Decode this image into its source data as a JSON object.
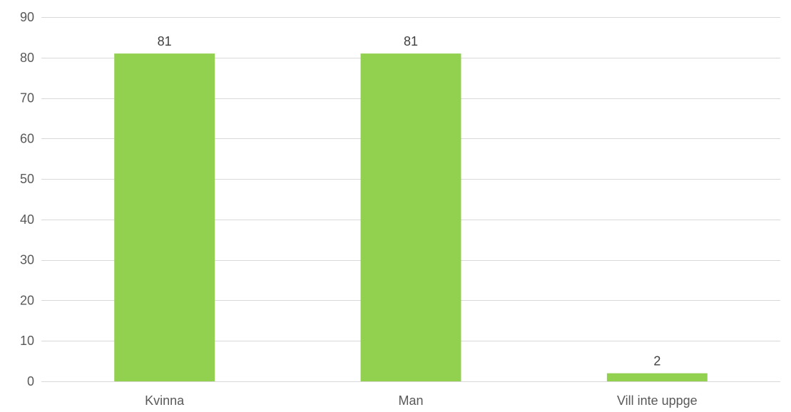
{
  "chart_data": {
    "type": "bar",
    "categories": [
      "Kvinna",
      "Man",
      "Vill inte uppge"
    ],
    "values": [
      81,
      81,
      2
    ],
    "data_labels": [
      "81",
      "81",
      "2"
    ],
    "y_ticks": [
      "0",
      "10",
      "20",
      "30",
      "40",
      "50",
      "60",
      "70",
      "80",
      "90"
    ],
    "ylim": [
      0,
      90
    ],
    "title": "",
    "xlabel": "",
    "ylabel": "",
    "grid": true,
    "legend": "none",
    "colors": {
      "bar": "#92d050",
      "grid": "#d9d9d9",
      "text": "#595959"
    }
  }
}
